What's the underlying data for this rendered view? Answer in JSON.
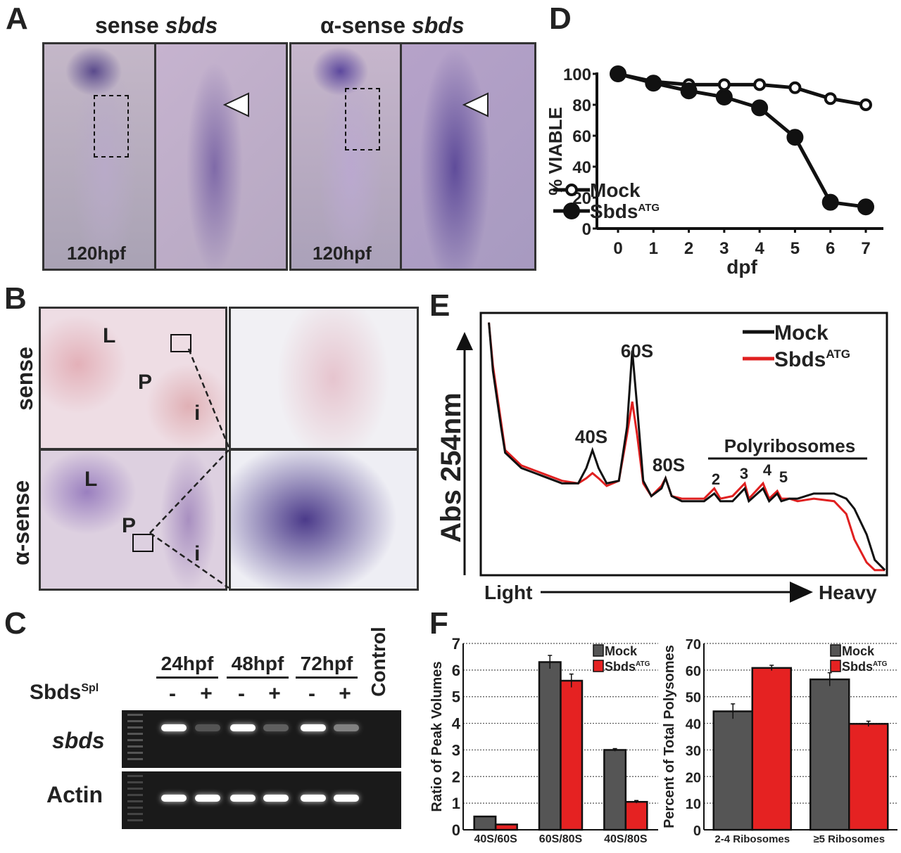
{
  "panels": {
    "A": "A",
    "B": "B",
    "C": "C",
    "D": "D",
    "E": "E",
    "F": "F"
  },
  "panelA": {
    "title_left_prefix": "sense ",
    "title_left_gene": "sbds",
    "title_right_prefix": "α-sense ",
    "title_right_gene": "sbds",
    "stage_left": "120hpf",
    "stage_right": "120hpf"
  },
  "panelB": {
    "row_sense": "sense",
    "row_antisense": "α-sense",
    "label_L": "L",
    "label_P": "P",
    "label_i": "i"
  },
  "panelC": {
    "timepoints": [
      "24hpf",
      "48hpf",
      "72hpf"
    ],
    "control": "Control",
    "morpholino": "Sbds",
    "morpholino_sup": "Spl",
    "signs": [
      "-",
      "+",
      "-",
      "+",
      "-",
      "+"
    ],
    "row_gene": "sbds",
    "row_actin": "Actin",
    "sbds_band_intensity": [
      1.0,
      0.25,
      1.0,
      0.3,
      1.0,
      0.45,
      0
    ],
    "actin_band_intensity": [
      1,
      1,
      1,
      1,
      1,
      1,
      0
    ]
  },
  "chart_data": [
    {
      "id": "D",
      "type": "line",
      "xlabel": "dpf",
      "ylabel": "% VIABLE",
      "xlim": [
        0,
        7
      ],
      "ylim": [
        0,
        100
      ],
      "x": [
        0,
        1,
        2,
        3,
        4,
        5,
        6,
        7
      ],
      "yticks": [
        0,
        20,
        40,
        60,
        80,
        100
      ],
      "legend": "bottom-left",
      "series": [
        {
          "name": "Mock",
          "marker": "open",
          "values": [
            100,
            95,
            93,
            93,
            93,
            91,
            84,
            80
          ]
        },
        {
          "name": "Sbds",
          "sup": "ATG",
          "marker": "filled",
          "values": [
            100,
            94,
            89,
            85,
            78,
            59,
            17,
            14
          ]
        }
      ]
    },
    {
      "id": "E",
      "type": "line",
      "ylabel": "Abs 254nm",
      "xlabel_left": "Light",
      "xlabel_right": "Heavy",
      "xlim": [
        0,
        100
      ],
      "ylim": [
        0,
        100
      ],
      "annotations": [
        "40S",
        "60S",
        "80S",
        "Polyribosomes",
        "2",
        "3",
        "4",
        "5"
      ],
      "legend": "top-right",
      "x": [
        2,
        3,
        5,
        6,
        10,
        15,
        20,
        24,
        26,
        27.5,
        29,
        31,
        34,
        36,
        37.3,
        38.5,
        40,
        42,
        44.5,
        45.5,
        47,
        49.5,
        55,
        57.5,
        59,
        62,
        65,
        66,
        69.5,
        71,
        73,
        74,
        76,
        78,
        82,
        87,
        90,
        92,
        95,
        97,
        99.5
      ],
      "series": [
        {
          "name": "Mock",
          "color": "#111111",
          "values": [
            99,
            80,
            58,
            48,
            42,
            39,
            36,
            36,
            42,
            49,
            42,
            36,
            37,
            58,
            88,
            66,
            37,
            31,
            34,
            38,
            31,
            29,
            29,
            32,
            29,
            29,
            34,
            29,
            34,
            29,
            32,
            29,
            30,
            30,
            32,
            32,
            30,
            26,
            16,
            6,
            2
          ]
        },
        {
          "name": "Sbds",
          "sup": "ATG",
          "color": "#e02020",
          "values": [
            99,
            82,
            60,
            49,
            43,
            40,
            37,
            36,
            38,
            40,
            38,
            35,
            37,
            55,
            68,
            55,
            36,
            31,
            35,
            38,
            31,
            30,
            30,
            34,
            30,
            31,
            36,
            30,
            36,
            30,
            33,
            30,
            30,
            29,
            30,
            29,
            24,
            14,
            5,
            2,
            2
          ]
        }
      ]
    },
    {
      "id": "F1",
      "type": "bar",
      "ylabel": "Ratio of Peak Volumes",
      "ylim": [
        0,
        7
      ],
      "yticks": [
        0,
        1,
        2,
        3,
        4,
        5,
        6,
        7
      ],
      "categories": [
        "40S/60S",
        "60S/80S",
        "40S/80S"
      ],
      "legend": "top-right",
      "series": [
        {
          "name": "Mock",
          "color": "#555555",
          "values": [
            0.5,
            6.3,
            3.0
          ],
          "err": [
            0,
            0.25,
            0.05
          ]
        },
        {
          "name": "Sbds",
          "sup": "ATG",
          "color": "#e52222",
          "values": [
            0.2,
            5.6,
            1.05
          ],
          "err": [
            0,
            0.25,
            0.05
          ]
        }
      ]
    },
    {
      "id": "F2",
      "type": "bar",
      "ylabel": "Percent of Total Polysomes",
      "ylim": [
        0,
        70
      ],
      "yticks": [
        0,
        10,
        20,
        30,
        40,
        50,
        60,
        70
      ],
      "categories": [
        "2-4 Ribosomes",
        "≥5 Ribosomes"
      ],
      "legend": "top-right",
      "series": [
        {
          "name": "Mock",
          "color": "#555555",
          "values": [
            44.5,
            56.5
          ],
          "err": [
            2.8,
            2.5
          ]
        },
        {
          "name": "Sbds",
          "sup": "ATG",
          "color": "#e52222",
          "values": [
            60.8,
            39.8
          ],
          "err": [
            1,
            1
          ]
        }
      ]
    }
  ]
}
